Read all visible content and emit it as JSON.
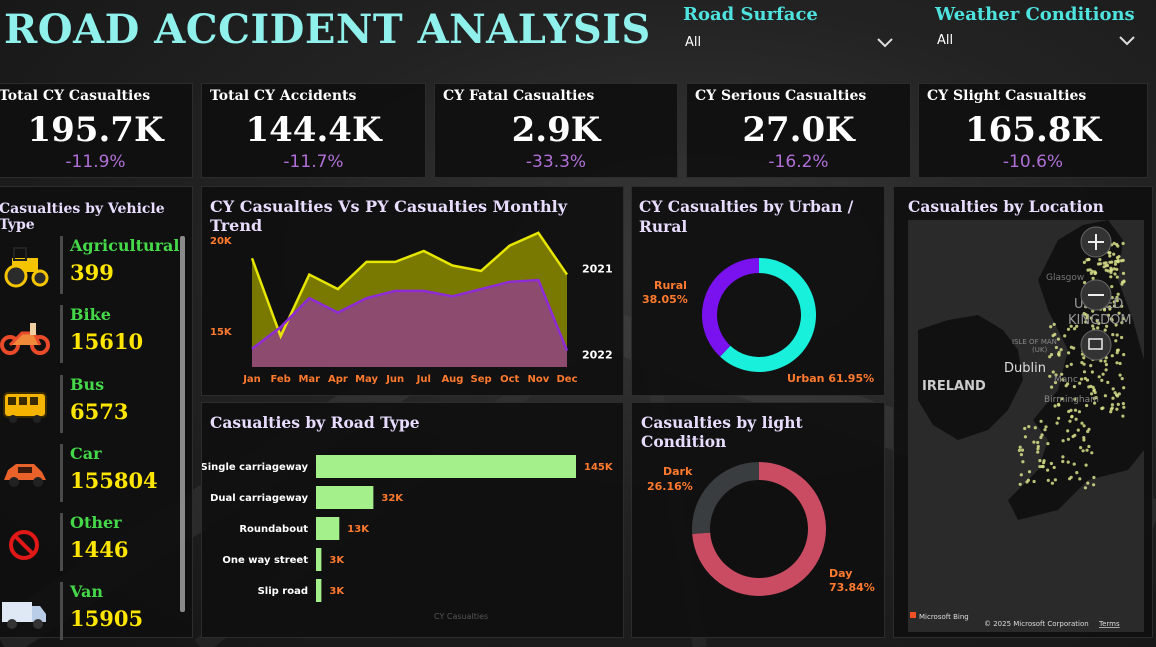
{
  "title": "ROAD ACCIDENT ANALYSIS",
  "slicers": [
    {
      "label": "Road Surface",
      "value": "All"
    },
    {
      "label": "Weather Conditions",
      "value": "All"
    }
  ],
  "kpis": [
    {
      "label": "Total CY Casualties",
      "value": "195.7K",
      "delta": "-11.9%"
    },
    {
      "label": "Total CY Accidents",
      "value": "144.4K",
      "delta": "-11.7%"
    },
    {
      "label": "CY Fatal Casualties",
      "value": "2.9K",
      "delta": "-33.3%"
    },
    {
      "label": "CY Serious Casualties",
      "value": "27.0K",
      "delta": "-16.2%"
    },
    {
      "label": "CY Slight Casualties",
      "value": "165.8K",
      "delta": "-10.6%"
    }
  ],
  "vehicle_panel": {
    "title": "Casualties by Vehicle Type",
    "items": [
      {
        "name": "Agricultural",
        "value": "399",
        "icon": "tractor-icon"
      },
      {
        "name": "Bike",
        "value": "15610",
        "icon": "motorbike-icon"
      },
      {
        "name": "Bus",
        "value": "6573",
        "icon": "bus-icon"
      },
      {
        "name": "Car",
        "value": "155804",
        "icon": "car-icon"
      },
      {
        "name": "Other",
        "value": "1446",
        "icon": "prohibited-icon"
      },
      {
        "name": "Van",
        "value": "15905",
        "icon": "van-icon"
      }
    ]
  },
  "trend_panel": {
    "title": "CY Casualties Vs PY Casualties Monthly Trend"
  },
  "urban_panel": {
    "title_line1": "CY Casualties by Urban /",
    "title_line2": "Rural"
  },
  "location_panel": {
    "title": "Casualties by Location",
    "map_labels": {
      "ireland": "IRELAND",
      "dublin": "Dublin",
      "uk_line1": "UNITED",
      "uk_line2": "KINGDOM",
      "isle": "ISLE OF MAN",
      "isle_uk": "(UK)",
      "glasgow": "Glasgow",
      "manchester": "Manc",
      "birmingham": "Birmingham"
    },
    "attribution_left": "Microsoft Bing",
    "attribution_right": "© 2025 Microsoft Corporation",
    "terms": "Terms"
  },
  "road_panel": {
    "title": "Casualties by Road Type",
    "watermark": "CY Casualties"
  },
  "light_panel": {
    "title": "Casualties by light Condition"
  },
  "colors": {
    "accent_title": "#8ff0ec",
    "slicer_label": "#4fe3e0",
    "delta": "#b06fd6",
    "vehicle_name": "#45d94a",
    "vehicle_value": "#ffe600",
    "cy_line": "#e6e600",
    "py_line": "#8e2bd6",
    "urban": "#19f0dc",
    "rural": "#7a12f0",
    "day": "#c94c63",
    "dark": "#3a3d40",
    "bar": "#a4f08a",
    "data_label": "#ff7a2e"
  },
  "chart_data": [
    {
      "type": "area",
      "title": "CY Casualties Vs PY Casualties Monthly Trend",
      "categories": [
        "Jan",
        "Feb",
        "Mar",
        "Apr",
        "May",
        "Jun",
        "Jul",
        "Aug",
        "Sep",
        "Oct",
        "Nov",
        "Dec"
      ],
      "y_ticks": [
        "15K",
        "20K"
      ],
      "ylim": [
        13000,
        21000
      ],
      "series": [
        {
          "name": "2021",
          "values": [
            19000,
            14700,
            18100,
            17300,
            18800,
            18800,
            19400,
            18600,
            18300,
            19700,
            20400,
            18100
          ]
        },
        {
          "name": "2022",
          "values": [
            14000,
            15200,
            16800,
            16000,
            16800,
            17200,
            17200,
            16900,
            17300,
            17700,
            17800,
            13900
          ]
        }
      ]
    },
    {
      "type": "pie",
      "title": "CY Casualties by Urban / Rural",
      "labels": [
        "Urban",
        "Rural"
      ],
      "values": [
        61.95,
        38.05
      ],
      "value_labels": [
        "61.95%",
        "38.05%"
      ]
    },
    {
      "type": "bar",
      "title": "Casualties by Road Type",
      "categories": [
        "Single carriageway",
        "Dual carriageway",
        "Roundabout",
        "One way street",
        "Slip road"
      ],
      "values": [
        145000,
        32000,
        13000,
        3000,
        3000
      ],
      "value_labels": [
        "145K",
        "32K",
        "13K",
        "3K",
        "3K"
      ]
    },
    {
      "type": "pie",
      "title": "Casualties by light Condition",
      "labels": [
        "Day",
        "Dark"
      ],
      "values": [
        73.84,
        26.16
      ],
      "value_labels": [
        "73.84%",
        "26.16%"
      ]
    }
  ]
}
